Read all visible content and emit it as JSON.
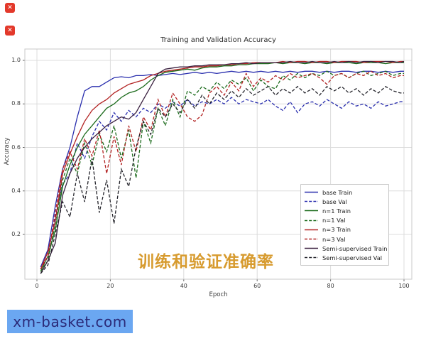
{
  "artifacts": {
    "broken_image_icon": "✕",
    "broken_image_color": "#e3392b"
  },
  "watermarks": {
    "site": "xm-basket.com",
    "site_bg": "#6ba7f1",
    "site_text_color": "#2b2a78",
    "chinese_caption": "训练和验证准确率",
    "chinese_color": "#d79b2f"
  },
  "chart_data": {
    "type": "line",
    "title": "Training and Validation Accuracy",
    "xlabel": "Epoch",
    "ylabel": "Accuracy",
    "grid": true,
    "legend_position": "center right",
    "xlim": [
      -3.3,
      102
    ],
    "ylim": [
      0.0,
      1.05
    ],
    "x_ticks": [
      0,
      20,
      40,
      60,
      80,
      100
    ],
    "x_tick_labels": [
      "0",
      "20",
      "40",
      "60",
      "80",
      "100"
    ],
    "y_ticks": [
      0.2,
      0.4,
      0.6,
      0.8,
      1.0
    ],
    "y_tick_labels": [
      "0.2",
      "0.4",
      "0.6",
      "0.8",
      "1.0"
    ],
    "x": [
      1,
      3,
      5,
      7,
      9,
      11,
      13,
      15,
      17,
      19,
      21,
      23,
      25,
      27,
      29,
      31,
      33,
      35,
      37,
      39,
      41,
      43,
      45,
      47,
      49,
      51,
      53,
      55,
      57,
      59,
      61,
      63,
      65,
      67,
      69,
      71,
      73,
      75,
      77,
      79,
      81,
      83,
      85,
      87,
      89,
      91,
      93,
      95,
      97,
      99,
      100
    ],
    "series": [
      {
        "name": "base Train",
        "color": "#2a2fae",
        "dash": false,
        "values": [
          0.05,
          0.13,
          0.33,
          0.5,
          0.6,
          0.74,
          0.86,
          0.88,
          0.88,
          0.9,
          0.92,
          0.925,
          0.92,
          0.93,
          0.93,
          0.935,
          0.93,
          0.935,
          0.94,
          0.935,
          0.94,
          0.945,
          0.94,
          0.945,
          0.94,
          0.945,
          0.95,
          0.945,
          0.95,
          0.945,
          0.95,
          0.945,
          0.95,
          0.945,
          0.95,
          0.945,
          0.95,
          0.95,
          0.945,
          0.95,
          0.945,
          0.95,
          0.95,
          0.945,
          0.95,
          0.95,
          0.945,
          0.95,
          0.945,
          0.95,
          0.95
        ]
      },
      {
        "name": "base Val",
        "color": "#2a2fae",
        "dash": true,
        "values": [
          0.04,
          0.1,
          0.28,
          0.43,
          0.48,
          0.62,
          0.55,
          0.65,
          0.72,
          0.68,
          0.76,
          0.72,
          0.77,
          0.74,
          0.78,
          0.76,
          0.8,
          0.78,
          0.81,
          0.79,
          0.82,
          0.79,
          0.81,
          0.8,
          0.82,
          0.8,
          0.83,
          0.8,
          0.82,
          0.81,
          0.8,
          0.82,
          0.79,
          0.77,
          0.81,
          0.76,
          0.8,
          0.81,
          0.79,
          0.82,
          0.8,
          0.78,
          0.81,
          0.79,
          0.8,
          0.78,
          0.81,
          0.79,
          0.8,
          0.81,
          0.81
        ]
      },
      {
        "name": "n=1 Train",
        "color": "#1c6b1c",
        "dash": false,
        "values": [
          0.03,
          0.1,
          0.22,
          0.42,
          0.52,
          0.6,
          0.66,
          0.7,
          0.74,
          0.78,
          0.8,
          0.83,
          0.85,
          0.86,
          0.88,
          0.91,
          0.93,
          0.945,
          0.95,
          0.955,
          0.96,
          0.955,
          0.965,
          0.97,
          0.97,
          0.975,
          0.975,
          0.98,
          0.98,
          0.985,
          0.985,
          0.985,
          0.99,
          0.985,
          0.99,
          0.99,
          0.985,
          0.99,
          0.99,
          0.985,
          0.99,
          0.99,
          0.99,
          0.985,
          0.99,
          0.99,
          0.99,
          0.985,
          0.99,
          0.99,
          0.99
        ]
      },
      {
        "name": "n=1 Val",
        "color": "#1c6b1c",
        "dash": true,
        "values": [
          0.03,
          0.08,
          0.25,
          0.45,
          0.55,
          0.48,
          0.62,
          0.52,
          0.66,
          0.58,
          0.7,
          0.55,
          0.68,
          0.46,
          0.72,
          0.62,
          0.78,
          0.7,
          0.82,
          0.74,
          0.86,
          0.84,
          0.88,
          0.86,
          0.9,
          0.87,
          0.91,
          0.89,
          0.92,
          0.86,
          0.91,
          0.88,
          0.87,
          0.93,
          0.91,
          0.94,
          0.92,
          0.94,
          0.93,
          0.95,
          0.93,
          0.94,
          0.92,
          0.94,
          0.95,
          0.93,
          0.94,
          0.95,
          0.93,
          0.94,
          0.94
        ]
      },
      {
        "name": "n=3 Train",
        "color": "#b22222",
        "dash": false,
        "values": [
          0.04,
          0.12,
          0.26,
          0.48,
          0.57,
          0.65,
          0.72,
          0.77,
          0.8,
          0.82,
          0.85,
          0.87,
          0.89,
          0.9,
          0.91,
          0.93,
          0.94,
          0.95,
          0.955,
          0.96,
          0.965,
          0.97,
          0.97,
          0.975,
          0.975,
          0.98,
          0.98,
          0.985,
          0.985,
          0.99,
          0.99,
          0.99,
          0.99,
          0.995,
          0.99,
          0.995,
          0.995,
          0.99,
          0.995,
          0.995,
          0.99,
          0.995,
          0.995,
          0.995,
          0.99,
          0.995,
          0.995,
          0.995,
          0.99,
          0.995,
          0.995
        ]
      },
      {
        "name": "n=3 Val",
        "color": "#b22222",
        "dash": true,
        "values": [
          0.04,
          0.1,
          0.3,
          0.5,
          0.58,
          0.5,
          0.64,
          0.56,
          0.68,
          0.48,
          0.65,
          0.52,
          0.7,
          0.58,
          0.74,
          0.68,
          0.82,
          0.74,
          0.85,
          0.8,
          0.74,
          0.72,
          0.75,
          0.85,
          0.88,
          0.84,
          0.9,
          0.86,
          0.94,
          0.88,
          0.92,
          0.9,
          0.93,
          0.91,
          0.94,
          0.92,
          0.93,
          0.94,
          0.92,
          0.89,
          0.93,
          0.94,
          0.92,
          0.94,
          0.93,
          0.95,
          0.93,
          0.94,
          0.92,
          0.93,
          0.93
        ]
      },
      {
        "name": "Semi-supervised Train",
        "color": "#3a2140",
        "dash": false,
        "values": [
          0.02,
          0.08,
          0.16,
          0.38,
          0.48,
          0.55,
          0.6,
          0.64,
          0.67,
          0.7,
          0.72,
          0.74,
          0.73,
          0.76,
          0.82,
          0.88,
          0.94,
          0.96,
          0.965,
          0.97,
          0.97,
          0.975,
          0.975,
          0.98,
          0.98,
          0.98,
          0.985,
          0.985,
          0.99,
          0.985,
          0.99,
          0.99,
          0.99,
          0.99,
          0.995,
          0.99,
          0.99,
          0.995,
          0.99,
          0.99,
          0.995,
          0.99,
          0.995,
          0.99,
          0.995,
          0.995,
          0.99,
          0.995,
          0.995,
          0.99,
          0.995
        ]
      },
      {
        "name": "Semi-supervised Val",
        "color": "#23232a",
        "dash": true,
        "values": [
          0.02,
          0.06,
          0.2,
          0.35,
          0.28,
          0.48,
          0.35,
          0.55,
          0.3,
          0.45,
          0.25,
          0.5,
          0.42,
          0.6,
          0.72,
          0.66,
          0.78,
          0.74,
          0.8,
          0.76,
          0.82,
          0.78,
          0.84,
          0.8,
          0.85,
          0.82,
          0.86,
          0.83,
          0.87,
          0.84,
          0.86,
          0.88,
          0.84,
          0.87,
          0.85,
          0.88,
          0.85,
          0.87,
          0.84,
          0.88,
          0.86,
          0.88,
          0.85,
          0.87,
          0.84,
          0.87,
          0.85,
          0.88,
          0.86,
          0.85,
          0.85
        ]
      }
    ]
  }
}
